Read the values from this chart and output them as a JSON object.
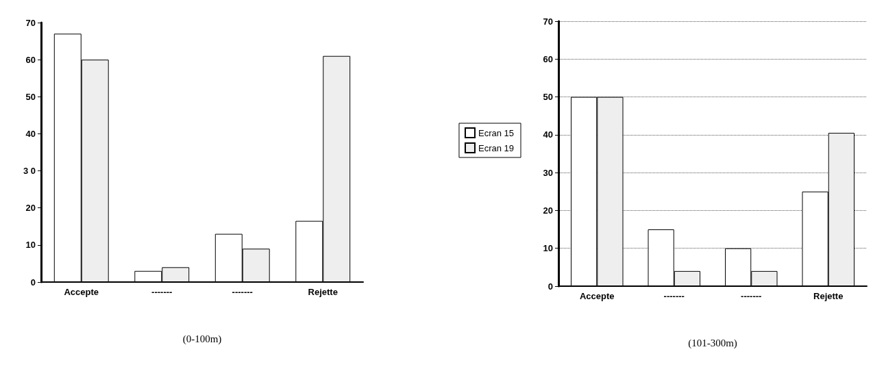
{
  "chart_data": [
    {
      "type": "bar",
      "xlabel": "(0-100m)",
      "categories": [
        "Accepte",
        "-------",
        "-------",
        "Rejette"
      ],
      "series": [
        {
          "name": "Ecran 15",
          "color": "#ffffff",
          "values": [
            67,
            3,
            13,
            16.5
          ]
        },
        {
          "name": "Ecran 19",
          "color": "#eeeeee",
          "values": [
            60,
            4,
            9,
            61
          ]
        }
      ],
      "ylim": [
        0,
        70
      ],
      "yticks": [
        0,
        10,
        20,
        {
          "value": 30,
          "label": "3 0"
        },
        40,
        50,
        60,
        70
      ],
      "grid": false,
      "legend": "right"
    },
    {
      "type": "bar",
      "xlabel": "(101-300m)",
      "categories": [
        "Accepte",
        "-------",
        "-------",
        "Rejette"
      ],
      "series": [
        {
          "color": "#ffffff",
          "values": [
            50,
            15,
            10,
            25
          ]
        },
        {
          "color": "#eeeeee",
          "values": [
            50,
            4,
            4,
            40.5
          ]
        }
      ],
      "ylim": [
        0,
        70
      ],
      "yticks": [
        0,
        10,
        20,
        30,
        40,
        50,
        60,
        70
      ],
      "grid": "y",
      "legend": false
    }
  ]
}
